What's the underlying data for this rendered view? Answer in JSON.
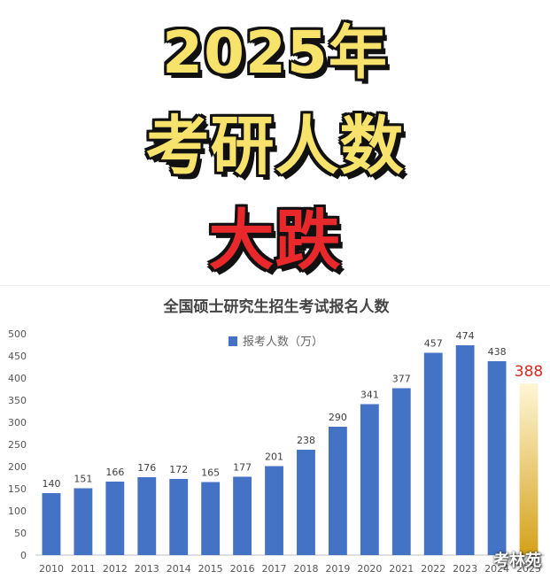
{
  "headline": {
    "line1": "2025年",
    "line2": "考研人数",
    "line3": "大跌"
  },
  "watermark": "考林苑",
  "colors": {
    "headline_yellow": "#f7e36b",
    "headline_red": "#e8282b",
    "bar_blue": "#4472c4",
    "highlight_label": "#d9281e",
    "highlight_gradient_top": "#fff6d6",
    "highlight_gradient_bottom": "#d4a21a"
  },
  "chart_data": {
    "type": "bar",
    "title": "全国硕士研究生招生考试报名人数",
    "legend": {
      "label": "报考人数（万）",
      "position": "top-left"
    },
    "categories": [
      "2010",
      "2011",
      "2012",
      "2013",
      "2014",
      "2015",
      "2016",
      "2017",
      "2018",
      "2019",
      "2020",
      "2021",
      "2022",
      "2023",
      "2024",
      "2025"
    ],
    "series": [
      {
        "name": "报考人数（万）",
        "values": [
          140,
          151,
          166,
          176,
          172,
          165,
          177,
          201,
          238,
          290,
          341,
          377,
          457,
          474,
          438,
          388
        ]
      }
    ],
    "highlight_index": 15,
    "ylim": [
      0,
      500
    ],
    "yticks": [
      "0",
      "50",
      "100",
      "150",
      "200",
      "250",
      "300",
      "350",
      "400",
      "450",
      "500"
    ],
    "grid": false
  }
}
